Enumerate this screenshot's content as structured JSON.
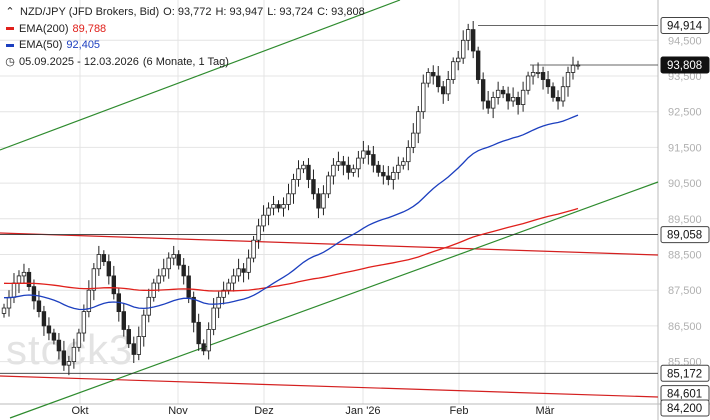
{
  "legend": {
    "symbol": "NZD/JPY (JFD Brokers, Bid)",
    "open": "O: 93,772",
    "high": "H: 93,947",
    "low": "L: 93,724",
    "close": "C: 93,808",
    "ema200_label": "EMA(200)",
    "ema200_value": "89,788",
    "ema50_label": "EMA(50)",
    "ema50_value": "92,405",
    "range_label": "05.09.2025 - 12.03.2026",
    "period_label": "(6 Monate, 1 Tag)"
  },
  "watermark": "stock3",
  "colors": {
    "ema200": "#e0201b",
    "ema50": "#1c3fbf",
    "trendline_green": "#2e8b2e",
    "channel_red": "#d42020",
    "candle": "#222222",
    "grid": "#e4e4e4"
  },
  "chart_data": {
    "type": "candlestick",
    "title": "NZD/JPY (JFD Brokers, Bid)",
    "x_categories": [
      "Okt",
      "Nov",
      "Dez",
      "Jan '26",
      "Feb",
      "Mär"
    ],
    "y_ticks": [
      85500,
      86500,
      87500,
      88500,
      89500,
      90500,
      91500,
      92500,
      93500,
      94500
    ],
    "y_tick_labels": [
      "85,500",
      "86,500",
      "87,500",
      "88,500",
      "89,500",
      "90,500",
      "91,500",
      "92,500",
      "93,500",
      "94,500"
    ],
    "ylim": [
      84200,
      95200
    ],
    "price_labels": [
      {
        "value": 94914,
        "text": "94,914",
        "style": "level"
      },
      {
        "value": 93808,
        "text": "93,808",
        "style": "last"
      },
      {
        "value": 89058,
        "text": "89,058",
        "style": "level"
      },
      {
        "value": 85172,
        "text": "85,172",
        "style": "level"
      },
      {
        "value": 84601,
        "text": "84,601",
        "style": "level"
      },
      {
        "value": 84200,
        "text": "84,200",
        "style": "level"
      }
    ],
    "horizontal_levels": [
      94914,
      93808,
      89058,
      85172
    ],
    "closes": [
      87000,
      87300,
      87700,
      87900,
      88000,
      87600,
      87200,
      86900,
      86500,
      86300,
      86100,
      85800,
      85400,
      85500,
      85900,
      86300,
      86900,
      87500,
      88100,
      88500,
      88300,
      87900,
      87400,
      86900,
      86400,
      86000,
      85700,
      86200,
      86800,
      87300,
      87700,
      87900,
      88100,
      88400,
      88500,
      88200,
      87900,
      87300,
      86600,
      86000,
      85800,
      86400,
      87000,
      87300,
      87500,
      87700,
      87900,
      88100,
      88000,
      88400,
      88900,
      89300,
      89600,
      89800,
      89900,
      89800,
      89900,
      90200,
      90600,
      90900,
      91000,
      90600,
      90200,
      89800,
      90200,
      90700,
      91000,
      91100,
      91000,
      90800,
      90900,
      91200,
      91400,
      91300,
      91000,
      90800,
      90700,
      90600,
      90800,
      91000,
      91100,
      91500,
      91900,
      92500,
      93300,
      93600,
      93500,
      93200,
      93000,
      93400,
      93900,
      94000,
      94500,
      94800,
      94200,
      93400,
      92800,
      92600,
      92900,
      93100,
      93000,
      92800,
      92900,
      92700,
      93100,
      93500,
      93600,
      93600,
      93400,
      93200,
      92900,
      92800,
      93200,
      93600,
      93800,
      93808
    ],
    "high": 94914,
    "ema200": {
      "start": 87700,
      "end": 89788
    },
    "ema50": {
      "start": 87300,
      "end": 92405
    }
  }
}
